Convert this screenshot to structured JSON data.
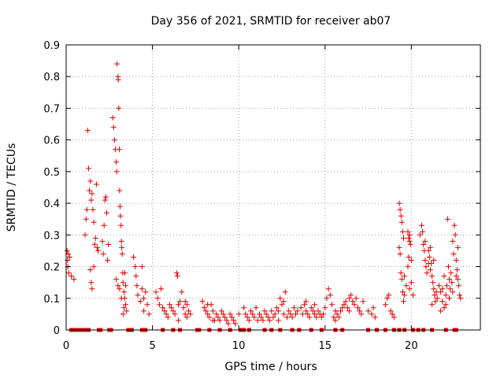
{
  "chart_data": {
    "type": "scatter",
    "title": "Day 356 of 2021, SRMTID for receiver ab07",
    "xlabel": "GPS time / hours",
    "ylabel": "SRMTID / TECUs",
    "xlim": [
      0,
      24
    ],
    "ylim": [
      0,
      0.9
    ],
    "xticks": [
      0,
      5,
      10,
      15,
      20
    ],
    "yticks": [
      0,
      0.1,
      0.2,
      0.3,
      0.4,
      0.5,
      0.6,
      0.7,
      0.8,
      0.9
    ],
    "xtick_labels": [
      "0",
      "5",
      "10",
      "15",
      "20"
    ],
    "ytick_labels": [
      "0",
      "0.1",
      "0.2",
      "0.3",
      "0.4",
      "0.5",
      "0.6",
      "0.7",
      "0.8",
      "0.9"
    ],
    "grid": true,
    "marker": "+",
    "color": "#dd0000",
    "series": [
      {
        "name": "SRMTID",
        "points": [
          [
            0.05,
            0.25
          ],
          [
            0.08,
            0.22
          ],
          [
            0.1,
            0.2
          ],
          [
            0.12,
            0.24
          ],
          [
            0.15,
            0.18
          ],
          [
            0.2,
            0.23
          ],
          [
            0.3,
            0.17
          ],
          [
            0.45,
            0.16
          ],
          [
            1.1,
            0.3
          ],
          [
            1.15,
            0.35
          ],
          [
            1.2,
            0.38
          ],
          [
            1.25,
            0.63
          ],
          [
            1.3,
            0.51
          ],
          [
            1.35,
            0.44
          ],
          [
            1.4,
            0.47
          ],
          [
            1.45,
            0.41
          ],
          [
            1.5,
            0.43
          ],
          [
            1.55,
            0.38
          ],
          [
            1.6,
            0.34
          ],
          [
            1.65,
            0.27
          ],
          [
            1.7,
            0.29
          ],
          [
            1.75,
            0.46
          ],
          [
            1.8,
            0.26
          ],
          [
            1.85,
            0.25
          ],
          [
            1.4,
            0.19
          ],
          [
            1.45,
            0.15
          ],
          [
            1.5,
            0.13
          ],
          [
            1.6,
            0.2
          ],
          [
            2.1,
            0.28
          ],
          [
            2.15,
            0.24
          ],
          [
            2.2,
            0.33
          ],
          [
            2.25,
            0.41
          ],
          [
            2.3,
            0.42
          ],
          [
            2.35,
            0.37
          ],
          [
            2.4,
            0.22
          ],
          [
            2.45,
            0.27
          ],
          [
            2.7,
            0.67
          ],
          [
            2.75,
            0.64
          ],
          [
            2.8,
            0.6
          ],
          [
            2.85,
            0.57
          ],
          [
            2.9,
            0.53
          ],
          [
            2.93,
            0.5
          ],
          [
            2.95,
            0.84
          ],
          [
            3.0,
            0.8
          ],
          [
            3.02,
            0.79
          ],
          [
            3.05,
            0.7
          ],
          [
            3.08,
            0.57
          ],
          [
            3.1,
            0.44
          ],
          [
            3.12,
            0.39
          ],
          [
            3.15,
            0.36
          ],
          [
            3.18,
            0.33
          ],
          [
            3.2,
            0.28
          ],
          [
            3.22,
            0.26
          ],
          [
            3.25,
            0.24
          ],
          [
            3.28,
            0.18
          ],
          [
            3.3,
            0.15
          ],
          [
            3.35,
            0.12
          ],
          [
            3.4,
            0.1
          ],
          [
            3.45,
            0.08
          ],
          [
            3.5,
            0.06
          ],
          [
            3.3,
            0.05
          ],
          [
            3.2,
            0.1
          ],
          [
            3.1,
            0.13
          ],
          [
            3.0,
            0.14
          ],
          [
            2.9,
            0.16
          ],
          [
            3.4,
            0.18
          ],
          [
            3.45,
            0.14
          ],
          [
            3.35,
            0.07
          ],
          [
            3.9,
            0.23
          ],
          [
            4.0,
            0.2
          ],
          [
            4.05,
            0.17
          ],
          [
            4.1,
            0.14
          ],
          [
            4.15,
            0.11
          ],
          [
            4.3,
            0.09
          ],
          [
            4.4,
            0.2
          ],
          [
            4.5,
            0.06
          ],
          [
            4.6,
            0.12
          ],
          [
            4.7,
            0.08
          ],
          [
            4.8,
            0.05
          ],
          [
            4.5,
            0.1
          ],
          [
            4.4,
            0.13
          ],
          [
            5.2,
            0.12
          ],
          [
            5.3,
            0.1
          ],
          [
            5.4,
            0.08
          ],
          [
            5.5,
            0.13
          ],
          [
            5.6,
            0.07
          ],
          [
            5.7,
            0.06
          ],
          [
            5.8,
            0.05
          ],
          [
            5.9,
            0.04
          ],
          [
            6.0,
            0.08
          ],
          [
            6.1,
            0.07
          ],
          [
            6.2,
            0.06
          ],
          [
            6.3,
            0.05
          ],
          [
            6.4,
            0.18
          ],
          [
            6.45,
            0.17
          ],
          [
            6.5,
            0.08
          ],
          [
            6.6,
            0.09
          ],
          [
            6.7,
            0.12
          ],
          [
            6.8,
            0.07
          ],
          [
            6.9,
            0.05
          ],
          [
            7.0,
            0.04
          ],
          [
            7.1,
            0.06
          ],
          [
            7.2,
            0.05
          ],
          [
            6.5,
            0.03
          ],
          [
            6.9,
            0.09
          ],
          [
            7.0,
            0.08
          ],
          [
            7.9,
            0.09
          ],
          [
            8.0,
            0.07
          ],
          [
            8.1,
            0.06
          ],
          [
            8.2,
            0.05
          ],
          [
            8.3,
            0.04
          ],
          [
            8.4,
            0.08
          ],
          [
            8.5,
            0.06
          ],
          [
            8.6,
            0.03
          ],
          [
            8.7,
            0.05
          ],
          [
            8.8,
            0.04
          ],
          [
            8.9,
            0.03
          ],
          [
            9.0,
            0.06
          ],
          [
            9.1,
            0.05
          ],
          [
            9.2,
            0.04
          ],
          [
            9.3,
            0.03
          ],
          [
            9.4,
            0.02
          ],
          [
            9.5,
            0.05
          ],
          [
            9.6,
            0.04
          ],
          [
            9.7,
            0.03
          ],
          [
            9.8,
            0.02
          ],
          [
            10.0,
            0.05
          ],
          [
            8.2,
            0.08
          ],
          [
            8.5,
            0.03
          ],
          [
            10.3,
            0.07
          ],
          [
            10.4,
            0.05
          ],
          [
            10.5,
            0.04
          ],
          [
            10.6,
            0.03
          ],
          [
            10.7,
            0.06
          ],
          [
            10.8,
            0.05
          ],
          [
            10.9,
            0.04
          ],
          [
            11.0,
            0.07
          ],
          [
            11.1,
            0.03
          ],
          [
            11.2,
            0.05
          ],
          [
            11.3,
            0.04
          ],
          [
            11.4,
            0.03
          ],
          [
            11.5,
            0.06
          ],
          [
            11.6,
            0.05
          ],
          [
            11.7,
            0.04
          ],
          [
            11.8,
            0.03
          ],
          [
            11.9,
            0.06
          ],
          [
            12.0,
            0.04
          ],
          [
            12.1,
            0.05
          ],
          [
            12.2,
            0.07
          ],
          [
            12.3,
            0.06
          ],
          [
            12.4,
            0.1
          ],
          [
            12.5,
            0.08
          ],
          [
            12.6,
            0.05
          ],
          [
            12.7,
            0.12
          ],
          [
            12.8,
            0.04
          ],
          [
            12.9,
            0.06
          ],
          [
            13.0,
            0.05
          ],
          [
            13.1,
            0.04
          ],
          [
            13.2,
            0.07
          ],
          [
            13.3,
            0.05
          ],
          [
            13.4,
            0.06
          ],
          [
            12.3,
            0.03
          ],
          [
            12.6,
            0.09
          ],
          [
            13.6,
            0.07
          ],
          [
            13.7,
            0.05
          ],
          [
            13.8,
            0.08
          ],
          [
            13.9,
            0.06
          ],
          [
            14.0,
            0.05
          ],
          [
            14.1,
            0.04
          ],
          [
            14.2,
            0.07
          ],
          [
            14.3,
            0.06
          ],
          [
            14.4,
            0.05
          ],
          [
            14.5,
            0.04
          ],
          [
            14.6,
            0.06
          ],
          [
            14.7,
            0.05
          ],
          [
            14.8,
            0.04
          ],
          [
            14.9,
            0.05
          ],
          [
            15.0,
            0.07
          ],
          [
            15.1,
            0.1
          ],
          [
            15.2,
            0.13
          ],
          [
            15.3,
            0.11
          ],
          [
            15.4,
            0.08
          ],
          [
            15.5,
            0.04
          ],
          [
            15.6,
            0.03
          ],
          [
            15.7,
            0.05
          ],
          [
            15.8,
            0.04
          ],
          [
            15.9,
            0.06
          ],
          [
            16.0,
            0.07
          ],
          [
            16.1,
            0.08
          ],
          [
            16.2,
            0.09
          ],
          [
            16.3,
            0.07
          ],
          [
            16.4,
            0.1
          ],
          [
            16.5,
            0.11
          ],
          [
            16.6,
            0.09
          ],
          [
            16.7,
            0.08
          ],
          [
            16.8,
            0.1
          ],
          [
            16.9,
            0.07
          ],
          [
            17.0,
            0.06
          ],
          [
            17.1,
            0.05
          ],
          [
            17.2,
            0.09
          ],
          [
            13.9,
            0.09
          ],
          [
            14.4,
            0.08
          ],
          [
            15.6,
            0.06
          ],
          [
            16.4,
            0.06
          ],
          [
            17.5,
            0.06
          ],
          [
            17.7,
            0.05
          ],
          [
            17.8,
            0.07
          ],
          [
            17.9,
            0.04
          ],
          [
            18.5,
            0.08
          ],
          [
            18.6,
            0.1
          ],
          [
            18.7,
            0.11
          ],
          [
            18.8,
            0.06
          ],
          [
            18.9,
            0.05
          ],
          [
            19.0,
            0.04
          ],
          [
            19.3,
            0.4
          ],
          [
            19.35,
            0.38
          ],
          [
            19.4,
            0.36
          ],
          [
            19.45,
            0.34
          ],
          [
            19.5,
            0.31
          ],
          [
            19.55,
            0.29
          ],
          [
            19.3,
            0.26
          ],
          [
            19.35,
            0.24
          ],
          [
            19.4,
            0.18
          ],
          [
            19.45,
            0.16
          ],
          [
            19.5,
            0.12
          ],
          [
            19.55,
            0.09
          ],
          [
            19.6,
            0.11
          ],
          [
            19.8,
            0.31
          ],
          [
            19.85,
            0.29
          ],
          [
            19.9,
            0.3
          ],
          [
            19.95,
            0.27
          ],
          [
            20.0,
            0.22
          ],
          [
            19.8,
            0.2
          ],
          [
            19.9,
            0.13
          ],
          [
            20.0,
            0.15
          ],
          [
            20.1,
            0.11
          ],
          [
            19.9,
            0.28
          ],
          [
            19.85,
            0.23
          ],
          [
            19.6,
            0.17
          ],
          [
            19.7,
            0.14
          ],
          [
            20.5,
            0.3
          ],
          [
            20.6,
            0.33
          ],
          [
            20.65,
            0.31
          ],
          [
            20.7,
            0.27
          ],
          [
            20.75,
            0.25
          ],
          [
            20.8,
            0.22
          ],
          [
            20.85,
            0.2
          ],
          [
            20.9,
            0.18
          ],
          [
            21.0,
            0.25
          ],
          [
            21.05,
            0.23
          ],
          [
            21.1,
            0.26
          ],
          [
            21.15,
            0.21
          ],
          [
            21.2,
            0.17
          ],
          [
            21.25,
            0.15
          ],
          [
            21.3,
            0.13
          ],
          [
            21.35,
            0.11
          ],
          [
            21.4,
            0.09
          ],
          [
            21.45,
            0.12
          ],
          [
            21.5,
            0.1
          ],
          [
            21.2,
            0.08
          ],
          [
            21.1,
            0.19
          ],
          [
            21.3,
            0.22
          ],
          [
            20.8,
            0.28
          ],
          [
            21.0,
            0.21
          ],
          [
            21.6,
            0.14
          ],
          [
            21.7,
            0.12
          ],
          [
            21.8,
            0.13
          ],
          [
            21.9,
            0.17
          ],
          [
            22.0,
            0.11
          ],
          [
            22.05,
            0.14
          ],
          [
            22.1,
            0.35
          ],
          [
            22.15,
            0.2
          ],
          [
            22.2,
            0.16
          ],
          [
            22.25,
            0.13
          ],
          [
            22.3,
            0.18
          ],
          [
            22.35,
            0.15
          ],
          [
            22.4,
            0.28
          ],
          [
            22.45,
            0.24
          ],
          [
            22.5,
            0.33
          ],
          [
            22.55,
            0.3
          ],
          [
            22.6,
            0.22
          ],
          [
            22.65,
            0.19
          ],
          [
            22.7,
            0.16
          ],
          [
            22.75,
            0.14
          ],
          [
            22.8,
            0.11
          ],
          [
            22.85,
            0.1
          ],
          [
            21.8,
            0.09
          ],
          [
            21.9,
            0.07
          ],
          [
            22.0,
            0.08
          ],
          [
            21.7,
            0.06
          ],
          [
            22.2,
            0.1
          ],
          [
            22.4,
            0.12
          ],
          [
            22.6,
            0.17
          ],
          [
            22.7,
            0.26
          ]
        ],
        "zero_values_at_x": [
          0.3,
          0.5,
          0.7,
          0.9,
          1.1,
          1.3,
          1.9,
          2.0,
          2.5,
          2.6,
          3.6,
          3.8,
          4.4,
          4.6,
          5.6,
          6.2,
          6.6,
          7.6,
          7.7,
          8.3,
          8.9,
          9.5,
          10.1,
          10.3,
          10.6,
          11.5,
          11.9,
          12.4,
          13.1,
          13.5,
          14.2,
          14.8,
          15.6,
          16.0,
          17.5,
          18.0,
          18.5,
          19.0,
          19.3,
          19.6,
          20.1,
          20.4,
          20.7,
          21.2,
          22.0,
          22.5,
          22.6
        ]
      }
    ]
  }
}
